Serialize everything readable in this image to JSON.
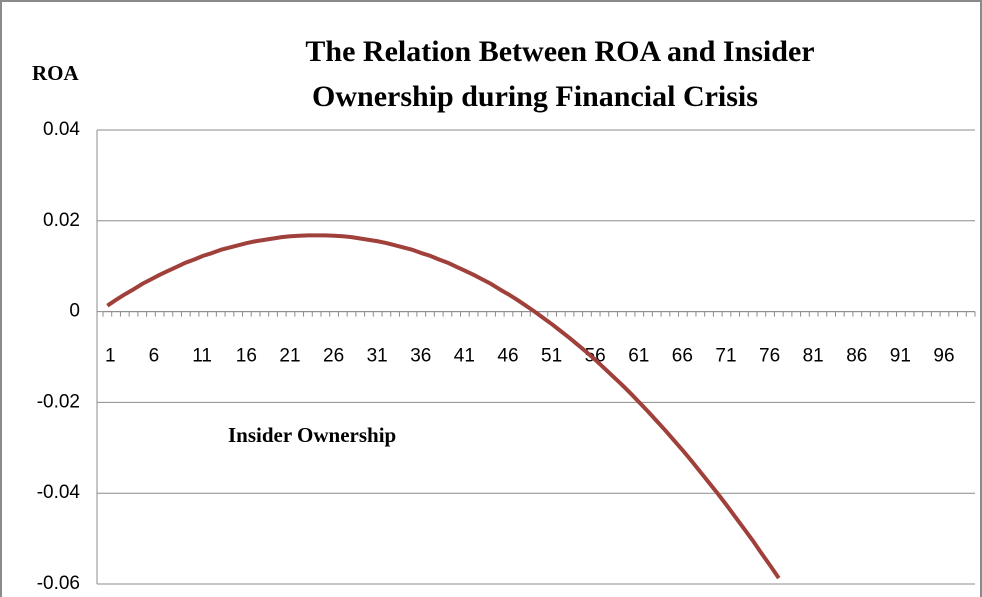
{
  "chart_data": {
    "type": "line",
    "title": [
      "The  Relation  Between ROA and Insider",
      "Ownership during Financial Crisis"
    ],
    "y_label": "ROA",
    "x_label": "Insider Ownership",
    "categories": [
      1,
      null,
      null,
      null,
      null,
      6,
      null,
      null,
      null,
      null,
      11,
      null,
      null,
      null,
      null,
      16,
      null,
      null,
      null,
      null,
      21,
      null,
      null,
      null,
      null,
      26,
      null,
      null,
      null,
      null,
      31,
      null,
      null,
      null,
      null,
      36,
      null,
      null,
      null,
      null,
      41,
      null,
      null,
      null,
      null,
      46,
      null,
      null,
      null,
      null,
      51,
      null,
      null,
      null,
      null,
      56,
      null,
      null,
      null,
      null,
      61,
      null,
      null,
      null,
      null,
      66,
      null,
      null,
      null,
      null,
      71,
      null,
      null,
      null,
      null,
      76,
      null,
      null,
      null,
      null,
      81,
      null,
      null,
      null,
      null,
      86,
      null,
      null,
      null,
      null,
      91,
      null,
      null,
      null,
      null,
      96,
      null,
      null,
      null,
      null
    ],
    "series": [
      {
        "color": "#a0403b",
        "values": [
          0.0013,
          0.0026,
          0.0038,
          0.0049,
          0.0061,
          0.0071,
          0.0081,
          0.009,
          0.0099,
          0.0108,
          0.0115,
          0.0123,
          0.0129,
          0.0136,
          0.0141,
          0.0146,
          0.0151,
          0.0155,
          0.0158,
          0.0161,
          0.0164,
          0.0166,
          0.0167,
          0.0168,
          0.0168,
          0.0168,
          0.0167,
          0.0166,
          0.0164,
          0.0161,
          0.0158,
          0.0155,
          0.0151,
          0.0146,
          0.0141,
          0.0136,
          0.0129,
          0.0123,
          0.0115,
          0.0108,
          0.0099,
          0.009,
          0.0081,
          0.0071,
          0.0061,
          0.0049,
          0.0038,
          0.0026,
          0.0013,
          0,
          -0.0014,
          -0.0028,
          -0.0043,
          -0.0058,
          -0.0074,
          -0.009,
          -0.0107,
          -0.0125,
          -0.0143,
          -0.0161,
          -0.018,
          -0.02,
          -0.022,
          -0.0241,
          -0.0262,
          -0.0284,
          -0.0306,
          -0.0329,
          -0.0353,
          -0.0377,
          -0.0401,
          -0.0426,
          -0.0452,
          -0.0478,
          -0.0504,
          -0.0532,
          -0.0559,
          -0.0587,
          null,
          null,
          null,
          null,
          null,
          null,
          null,
          null,
          null,
          null,
          null,
          null,
          null,
          null,
          null,
          null,
          null,
          null,
          null,
          null,
          null,
          null
        ]
      }
    ],
    "ylim": [
      -0.06,
      0.04
    ],
    "yticks": [
      0.04,
      0.02,
      0,
      -0.02,
      -0.04,
      -0.06
    ],
    "grid": true
  }
}
